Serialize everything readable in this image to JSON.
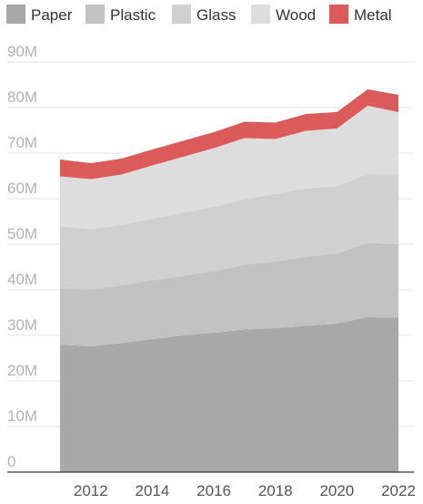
{
  "chart_data": {
    "type": "area",
    "stacked": true,
    "x": [
      2011,
      2012,
      2013,
      2014,
      2015,
      2016,
      2017,
      2018,
      2019,
      2020,
      2021,
      2022
    ],
    "x_tick_labels": [
      "2012",
      "2014",
      "2016",
      "2018",
      "2020",
      "2022"
    ],
    "y_tick_labels": [
      "0",
      "10M",
      "20M",
      "30M",
      "40M",
      "50M",
      "60M",
      "70M",
      "80M",
      "90M"
    ],
    "ylim": [
      0,
      90000000
    ],
    "grid": true,
    "legend_position": "top",
    "series": [
      {
        "name": "Paper",
        "color": "#a8a8a8",
        "values": [
          28000000,
          27600000,
          28300000,
          29200000,
          30000000,
          30600000,
          31300000,
          31600000,
          32100000,
          32600000,
          34000000,
          33900000
        ]
      },
      {
        "name": "Plastic",
        "color": "#c2c2c2",
        "values": [
          12300000,
          12500000,
          12700000,
          12900000,
          13100000,
          13500000,
          14200000,
          14600000,
          15200000,
          15400000,
          16300000,
          16100000
        ]
      },
      {
        "name": "Glass",
        "color": "#d0d0d0",
        "values": [
          13600000,
          13200000,
          13300000,
          13500000,
          13800000,
          14100000,
          14400000,
          14800000,
          15000000,
          14700000,
          15100000,
          15300000
        ]
      },
      {
        "name": "Wood",
        "color": "#dddddd",
        "values": [
          11000000,
          11000000,
          11000000,
          11700000,
          12300000,
          12900000,
          13400000,
          12100000,
          12600000,
          12700000,
          15000000,
          13700000
        ]
      },
      {
        "name": "Metal",
        "color": "#db5b5b",
        "values": [
          3700000,
          3500000,
          3500000,
          3500000,
          3500000,
          3500000,
          3600000,
          3600000,
          3700000,
          3600000,
          3600000,
          3800000
        ]
      }
    ]
  }
}
